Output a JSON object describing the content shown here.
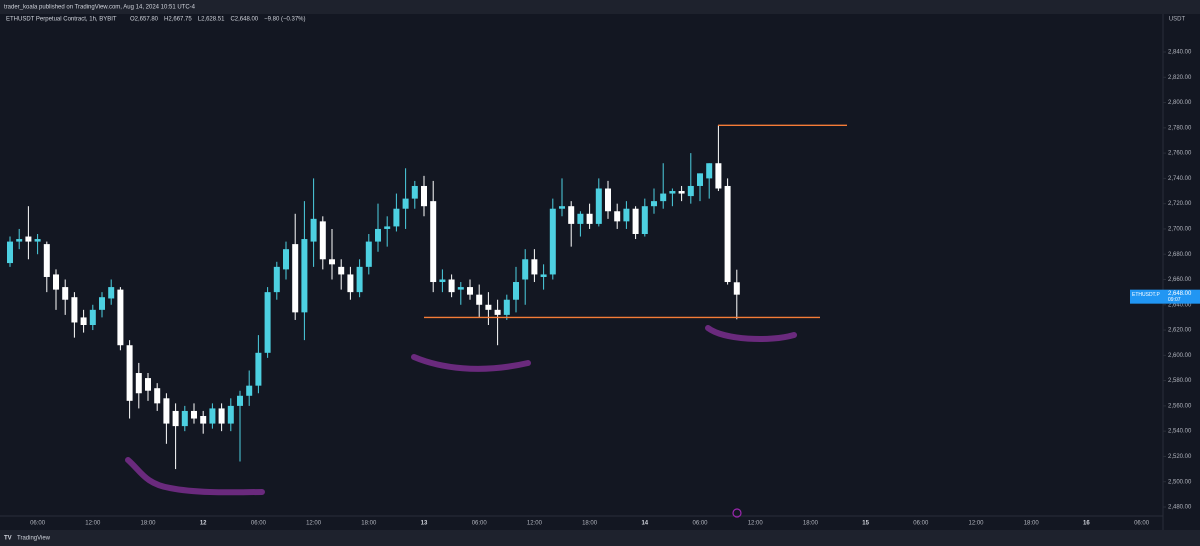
{
  "header": {
    "publisher": "trader_koala published on TradingView.com, Aug 14, 2024 10:51 UTC-4",
    "symbol": "ETHUSDT Perpetual Contract, 1h, BYBIT",
    "ohlc": [
      "O2,657.80",
      "H2,667.75",
      "L2,628.51",
      "C2,648.00",
      "−9.80 (−0.37%)"
    ]
  },
  "footer": {
    "brand": "TradingView"
  },
  "chart_data": {
    "type": "candlestick",
    "currency": "USDT",
    "up_color": "#4dd0e1",
    "down_color": "#ffffff",
    "ylim": [
      2470,
      2850
    ],
    "yticks": [
      {
        "value": 2840,
        "label": "2,840.00"
      },
      {
        "value": 2820,
        "label": "2,820.00"
      },
      {
        "value": 2800,
        "label": "2,800.00"
      },
      {
        "value": 2780,
        "label": "2,780.00"
      },
      {
        "value": 2760,
        "label": "2,760.00"
      },
      {
        "value": 2740,
        "label": "2,740.00"
      },
      {
        "value": 2720,
        "label": "2,720.00"
      },
      {
        "value": 2700,
        "label": "2,700.00"
      },
      {
        "value": 2680,
        "label": "2,680.00"
      },
      {
        "value": 2660,
        "label": "2,660.00"
      },
      {
        "value": 2640,
        "label": "2,640.00"
      },
      {
        "value": 2620,
        "label": "2,620.00"
      },
      {
        "value": 2600,
        "label": "2,600.00"
      },
      {
        "value": 2580,
        "label": "2,580.00"
      },
      {
        "value": 2560,
        "label": "2,560.00"
      },
      {
        "value": 2540,
        "label": "2,540.00"
      },
      {
        "value": 2520,
        "label": "2,520.00"
      },
      {
        "value": 2500,
        "label": "2,500.00"
      },
      {
        "value": 2480,
        "label": "2,480.00"
      }
    ],
    "xticks": [
      "06:00",
      "12:00",
      "18:00",
      "12",
      "06:00",
      "12:00",
      "18:00",
      "13",
      "06:00",
      "12:00",
      "18:00",
      "14",
      "06:00",
      "12:00",
      "18:00",
      "15",
      "06:00",
      "12:00",
      "18:00",
      "16",
      "06:00"
    ],
    "day_ticks": [
      "12",
      "13",
      "14",
      "15",
      "16"
    ],
    "candles": [
      [
        2673,
        2694,
        2670,
        2690
      ],
      [
        2690,
        2700,
        2684,
        2692
      ],
      [
        2694,
        2718,
        2676,
        2690
      ],
      [
        2690,
        2696,
        2680,
        2692
      ],
      [
        2688,
        2690,
        2650,
        2662
      ],
      [
        2664,
        2668,
        2636,
        2652
      ],
      [
        2654,
        2660,
        2632,
        2644
      ],
      [
        2646,
        2650,
        2614,
        2626
      ],
      [
        2630,
        2636,
        2618,
        2624
      ],
      [
        2624,
        2640,
        2620,
        2636
      ],
      [
        2636,
        2650,
        2630,
        2646
      ],
      [
        2645,
        2660,
        2640,
        2654
      ],
      [
        2652,
        2654,
        2604,
        2608
      ],
      [
        2608,
        2612,
        2550,
        2564
      ],
      [
        2586,
        2594,
        2558,
        2570
      ],
      [
        2582,
        2586,
        2564,
        2572
      ],
      [
        2574,
        2578,
        2556,
        2562
      ],
      [
        2566,
        2570,
        2530,
        2546
      ],
      [
        2556,
        2562,
        2510,
        2544
      ],
      [
        2544,
        2560,
        2540,
        2556
      ],
      [
        2556,
        2562,
        2546,
        2550
      ],
      [
        2552,
        2556,
        2538,
        2546
      ],
      [
        2546,
        2562,
        2542,
        2558
      ],
      [
        2558,
        2562,
        2540,
        2546
      ],
      [
        2546,
        2566,
        2540,
        2560
      ],
      [
        2560,
        2572,
        2516,
        2568
      ],
      [
        2568,
        2588,
        2560,
        2576
      ],
      [
        2576,
        2616,
        2570,
        2602
      ],
      [
        2602,
        2654,
        2598,
        2650
      ],
      [
        2650,
        2674,
        2644,
        2670
      ],
      [
        2668,
        2690,
        2660,
        2684
      ],
      [
        2688,
        2712,
        2628,
        2634
      ],
      [
        2634,
        2722,
        2612,
        2692
      ],
      [
        2690,
        2740,
        2670,
        2708
      ],
      [
        2706,
        2710,
        2668,
        2676
      ],
      [
        2676,
        2700,
        2660,
        2672
      ],
      [
        2670,
        2676,
        2652,
        2664
      ],
      [
        2664,
        2670,
        2644,
        2650
      ],
      [
        2650,
        2676,
        2646,
        2670
      ],
      [
        2670,
        2696,
        2664,
        2690
      ],
      [
        2690,
        2720,
        2682,
        2700
      ],
      [
        2700,
        2710,
        2686,
        2702
      ],
      [
        2702,
        2728,
        2698,
        2716
      ],
      [
        2716,
        2748,
        2700,
        2724
      ],
      [
        2724,
        2738,
        2716,
        2734
      ],
      [
        2734,
        2742,
        2710,
        2718
      ],
      [
        2722,
        2738,
        2650,
        2658
      ],
      [
        2658,
        2668,
        2650,
        2660
      ],
      [
        2660,
        2664,
        2646,
        2650
      ],
      [
        2652,
        2658,
        2640,
        2654
      ],
      [
        2654,
        2660,
        2644,
        2648
      ],
      [
        2648,
        2656,
        2630,
        2640
      ],
      [
        2640,
        2650,
        2624,
        2636
      ],
      [
        2636,
        2644,
        2608,
        2632
      ],
      [
        2632,
        2648,
        2628,
        2644
      ],
      [
        2644,
        2670,
        2634,
        2658
      ],
      [
        2660,
        2684,
        2640,
        2676
      ],
      [
        2676,
        2684,
        2658,
        2664
      ],
      [
        2662,
        2672,
        2652,
        2664
      ],
      [
        2664,
        2724,
        2660,
        2716
      ],
      [
        2716,
        2740,
        2710,
        2718
      ],
      [
        2718,
        2722,
        2686,
        2704
      ],
      [
        2704,
        2714,
        2694,
        2712
      ],
      [
        2712,
        2720,
        2700,
        2704
      ],
      [
        2704,
        2740,
        2702,
        2732
      ],
      [
        2732,
        2738,
        2708,
        2714
      ],
      [
        2714,
        2720,
        2700,
        2706
      ],
      [
        2706,
        2722,
        2700,
        2716
      ],
      [
        2716,
        2718,
        2692,
        2696
      ],
      [
        2696,
        2724,
        2694,
        2718
      ],
      [
        2718,
        2732,
        2712,
        2722
      ],
      [
        2722,
        2752,
        2716,
        2728
      ],
      [
        2728,
        2732,
        2718,
        2730
      ],
      [
        2730,
        2734,
        2722,
        2728
      ],
      [
        2726,
        2760,
        2720,
        2734
      ],
      [
        2734,
        2744,
        2722,
        2744
      ],
      [
        2740,
        2752,
        2724,
        2752
      ],
      [
        2752,
        2782,
        2730,
        2732
      ],
      [
        2734,
        2740,
        2656,
        2658
      ],
      [
        2657.8,
        2667.75,
        2628.51,
        2648
      ]
    ],
    "levels": [
      {
        "value": 2782,
        "color": "#f57c37"
      },
      {
        "value": 2630,
        "color": "#f57c37"
      }
    ],
    "price_tag": {
      "symbol": "ETHUSDT.P",
      "price": "2,648.00",
      "countdown": "09:07"
    }
  }
}
